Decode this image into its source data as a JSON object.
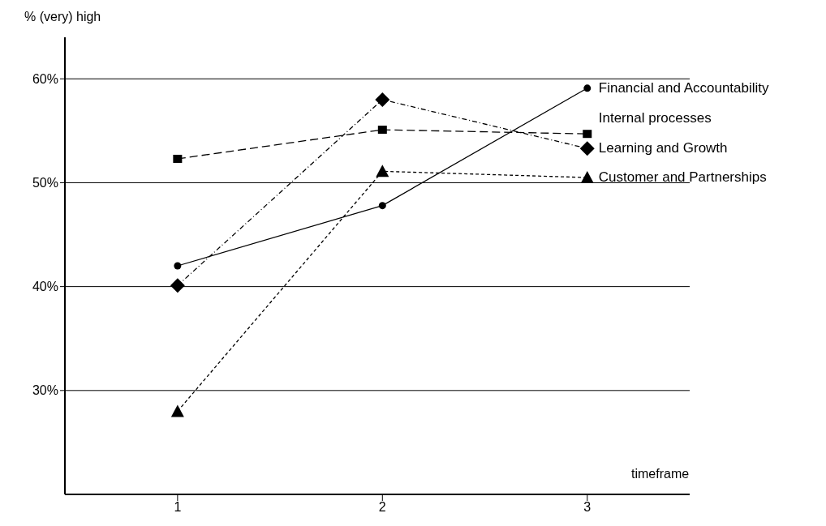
{
  "chart_data": {
    "type": "line",
    "ylabel": "% (very) high",
    "xlabel": "timeframe",
    "x": [
      1,
      2,
      3
    ],
    "xlim": [
      0.45,
      3.5
    ],
    "xticks": [
      1,
      2,
      3
    ],
    "ylim": [
      20,
      64
    ],
    "yticks": [
      {
        "value": 30,
        "label": "30%"
      },
      {
        "value": 40,
        "label": "40%"
      },
      {
        "value": 50,
        "label": "50%"
      },
      {
        "value": 60,
        "label": "60%"
      }
    ],
    "grid": "y",
    "series": [
      {
        "name": "Financial and Accountability",
        "color": "#000000",
        "values": [
          42.0,
          47.8,
          59.1
        ],
        "marker": "circle",
        "line_style": "solid"
      },
      {
        "name": "Internal processes",
        "color": "#000000",
        "values": [
          52.3,
          55.1,
          54.7
        ],
        "marker": "square",
        "line_style": "dashed"
      },
      {
        "name": "Learning and Growth",
        "color": "#000000",
        "values": [
          40.1,
          58.0,
          53.3
        ],
        "marker": "diamond",
        "line_style": "dashdot"
      },
      {
        "name": "Customer and Partnerships",
        "color": "#000000",
        "values": [
          28.0,
          51.1,
          50.5
        ],
        "marker": "triangle",
        "line_style": "dotted"
      }
    ]
  }
}
